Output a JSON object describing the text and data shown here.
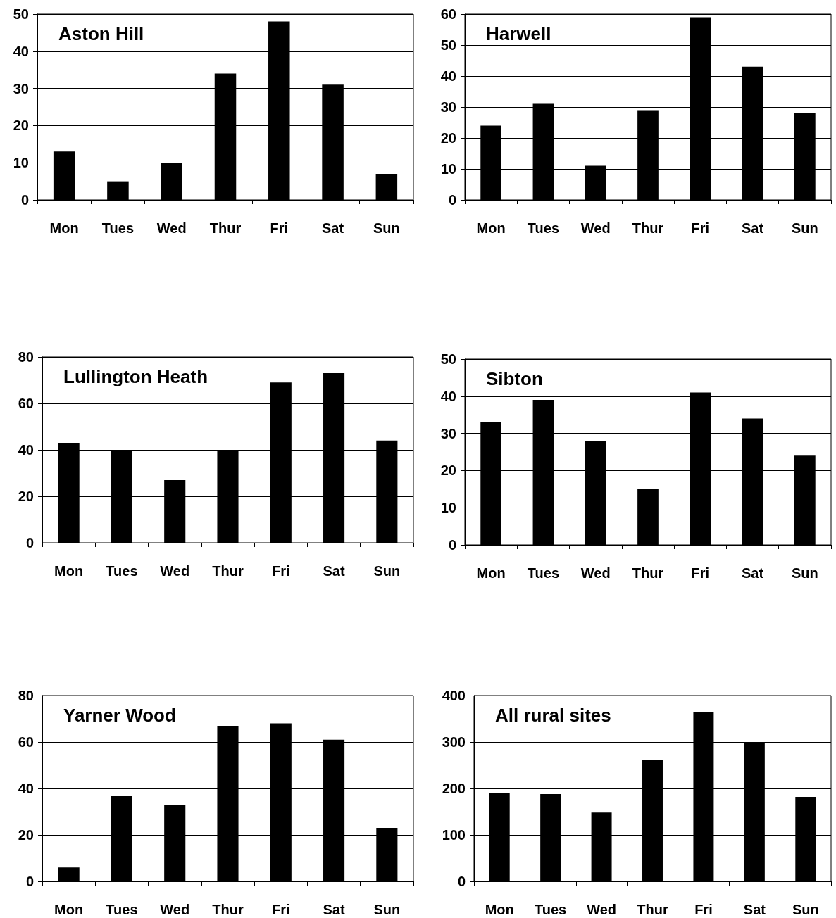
{
  "chart_data": [
    {
      "type": "bar",
      "title": "Aston Hill",
      "categories": [
        "Mon",
        "Tues",
        "Wed",
        "Thur",
        "Fri",
        "Sat",
        "Sun"
      ],
      "values": [
        13,
        5,
        10,
        34,
        48,
        31,
        7
      ],
      "color": "#000000",
      "ylim": [
        0,
        50
      ],
      "yticks": [
        0,
        10,
        20,
        30,
        40,
        50
      ],
      "grid": "y"
    },
    {
      "type": "bar",
      "title": "Harwell",
      "categories": [
        "Mon",
        "Tues",
        "Wed",
        "Thur",
        "Fri",
        "Sat",
        "Sun"
      ],
      "values": [
        24,
        31,
        11,
        29,
        59,
        43,
        28
      ],
      "color": "#000000",
      "ylim": [
        0,
        60
      ],
      "yticks": [
        0,
        10,
        20,
        30,
        40,
        50,
        60
      ],
      "grid": "y"
    },
    {
      "type": "bar",
      "title": "Lullington Heath",
      "categories": [
        "Mon",
        "Tues",
        "Wed",
        "Thur",
        "Fri",
        "Sat",
        "Sun"
      ],
      "values": [
        43,
        40,
        27,
        40,
        69,
        73,
        44
      ],
      "color": "#000000",
      "ylim": [
        0,
        80
      ],
      "yticks": [
        0,
        20,
        40,
        60,
        80
      ],
      "grid": "y"
    },
    {
      "type": "bar",
      "title": "Sibton",
      "categories": [
        "Mon",
        "Tues",
        "Wed",
        "Thur",
        "Fri",
        "Sat",
        "Sun"
      ],
      "values": [
        33,
        39,
        28,
        15,
        41,
        34,
        24
      ],
      "color": "#000000",
      "ylim": [
        0,
        50
      ],
      "yticks": [
        0,
        10,
        20,
        30,
        40,
        50
      ],
      "grid": "y"
    },
    {
      "type": "bar",
      "title": "Yarner Wood",
      "categories": [
        "Mon",
        "Tues",
        "Wed",
        "Thur",
        "Fri",
        "Sat",
        "Sun"
      ],
      "values": [
        6,
        37,
        33,
        67,
        68,
        61,
        23
      ],
      "color": "#000000",
      "ylim": [
        0,
        80
      ],
      "yticks": [
        0,
        20,
        40,
        60,
        80
      ],
      "grid": "y"
    },
    {
      "type": "bar",
      "title": "All rural sites",
      "categories": [
        "Mon",
        "Tues",
        "Wed",
        "Thur",
        "Fri",
        "Sat",
        "Sun"
      ],
      "values": [
        190,
        188,
        148,
        262,
        365,
        297,
        182
      ],
      "color": "#000000",
      "ylim": [
        0,
        400
      ],
      "yticks": [
        0,
        100,
        200,
        300,
        400
      ],
      "grid": "y"
    }
  ]
}
